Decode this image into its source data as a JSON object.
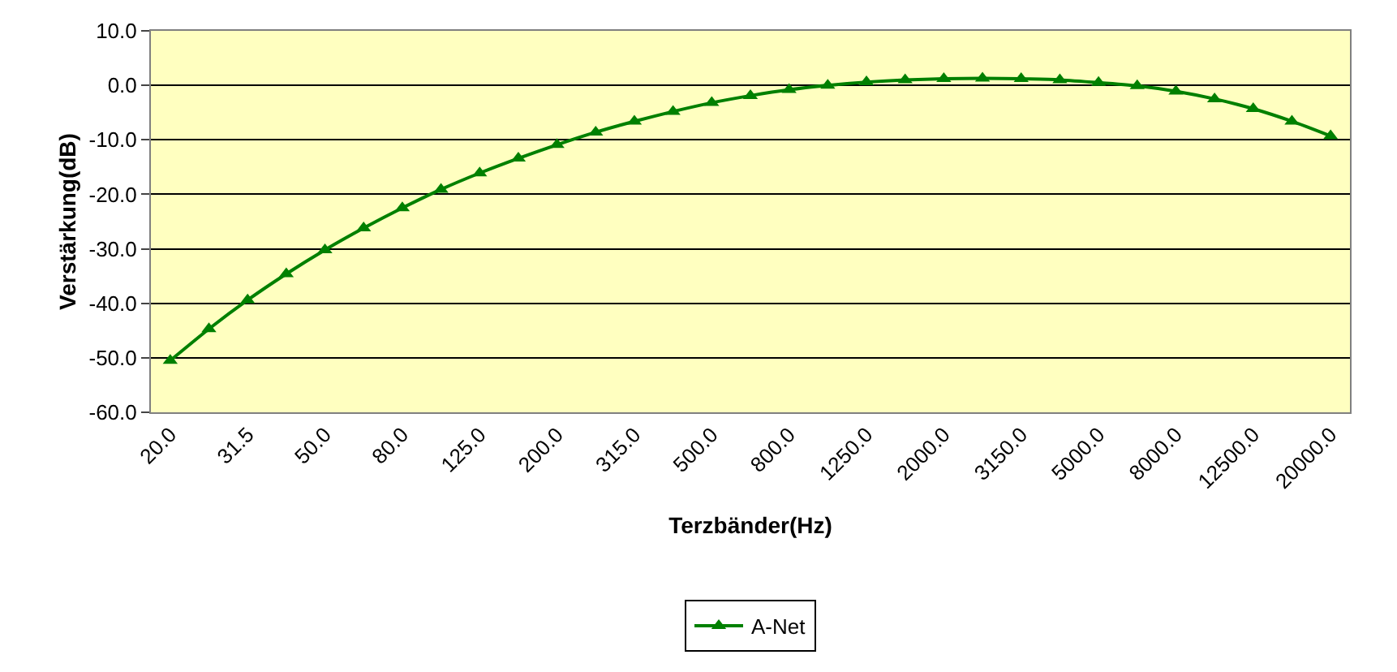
{
  "chart_data": {
    "type": "line",
    "xlabel": "Terzbänder(Hz)",
    "ylabel": "Verstärkung(dB)",
    "categories": [
      "20.0",
      null,
      "31.5",
      null,
      "50.0",
      null,
      "80.0",
      null,
      "125.0",
      null,
      "200.0",
      null,
      "315.0",
      null,
      "500.0",
      null,
      "800.0",
      null,
      "1250.0",
      null,
      "2000.0",
      null,
      "3150.0",
      null,
      "5000.0",
      null,
      "8000.0",
      null,
      "12500.0",
      null,
      "20000.0"
    ],
    "series": [
      {
        "name": "A-Net",
        "color": "#008000",
        "values": [
          -50.5,
          -44.7,
          -39.4,
          -34.6,
          -30.2,
          -26.2,
          -22.5,
          -19.1,
          -16.1,
          -13.4,
          -10.9,
          -8.6,
          -6.6,
          -4.8,
          -3.2,
          -1.9,
          -0.8,
          0.0,
          0.6,
          1.0,
          1.2,
          1.3,
          1.2,
          1.0,
          0.5,
          -0.1,
          -1.1,
          -2.5,
          -4.3,
          -6.6,
          -9.3
        ]
      }
    ],
    "ylim": [
      -60,
      10
    ],
    "yticks": [
      {
        "value": -60,
        "label": "-60.0"
      },
      {
        "value": -50,
        "label": "-50.0"
      },
      {
        "value": -40,
        "label": "-40.0"
      },
      {
        "value": -30,
        "label": "-30.0"
      },
      {
        "value": -20,
        "label": "-20.0"
      },
      {
        "value": -10,
        "label": "-10.0"
      },
      {
        "value": 0,
        "label": "0.0"
      },
      {
        "value": 10,
        "label": "10.0"
      }
    ],
    "grid": "y",
    "legend": "bottom",
    "marker": "triangle",
    "line_style": "solid"
  }
}
